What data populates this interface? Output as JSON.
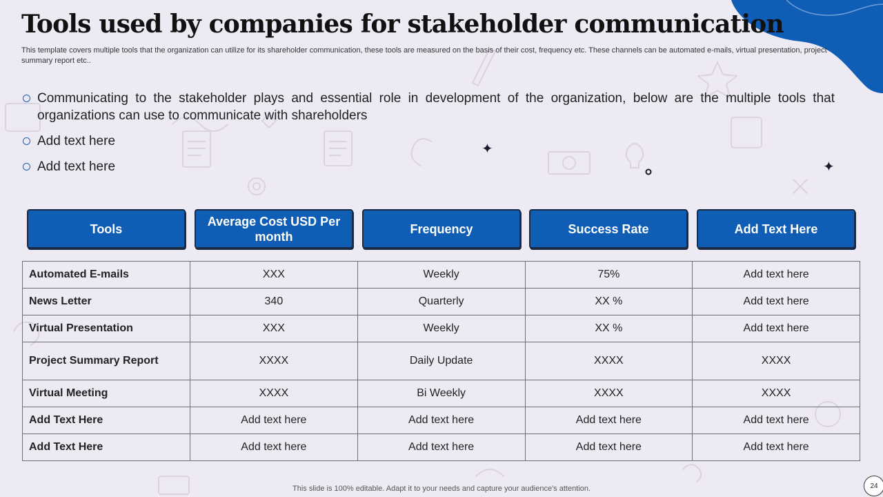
{
  "slide": {
    "title": "Tools used by companies for stakeholder communication",
    "subtitle": "This template covers multiple tools that the organization can utilize for its shareholder communication, these tools are measured on the basis of their cost, frequency etc. These channels can be automated e-mails, virtual presentation, project summary report etc..",
    "footer": "This slide is 100% editable. Adapt it to your needs and capture your audience's attention.",
    "page_number": "24",
    "colors": {
      "accent": "#0f5db5",
      "background": "#eeeaf3",
      "header_border": "#1b2a45"
    }
  },
  "bullets": [
    "Communicating to the stakeholder plays and essential role in development of the organization, below are the multiple tools that organizations can use to communicate with shareholders",
    "Add text here",
    "Add text here"
  ],
  "table": {
    "headers": [
      "Tools",
      "Average Cost USD Per month",
      "Frequency",
      "Success Rate",
      "Add Text Here"
    ],
    "rows": [
      [
        "Automated E-mails",
        "XXX",
        "Weekly",
        "75%",
        "Add text here"
      ],
      [
        "News Letter",
        "340",
        "Quarterly",
        "XX %",
        "Add text here"
      ],
      [
        "Virtual Presentation",
        "XXX",
        "Weekly",
        "XX %",
        "Add text here"
      ],
      [
        "Project Summary Report",
        "XXXX",
        "Daily Update",
        "XXXX",
        "XXXX"
      ],
      [
        "Virtual Meeting",
        "XXXX",
        "Bi Weekly",
        "XXXX",
        "XXXX"
      ],
      [
        "Add Text Here",
        "Add text here",
        "Add text here",
        "Add text here",
        "Add text here"
      ],
      [
        "Add Text Here",
        "Add text here",
        "Add text here",
        "Add text here",
        "Add text here"
      ]
    ]
  },
  "decor": {
    "sparkle_glyph": "✦",
    "icons": [
      "sparkle-icon",
      "bullet-circle-icon",
      "page-number-circle"
    ]
  }
}
